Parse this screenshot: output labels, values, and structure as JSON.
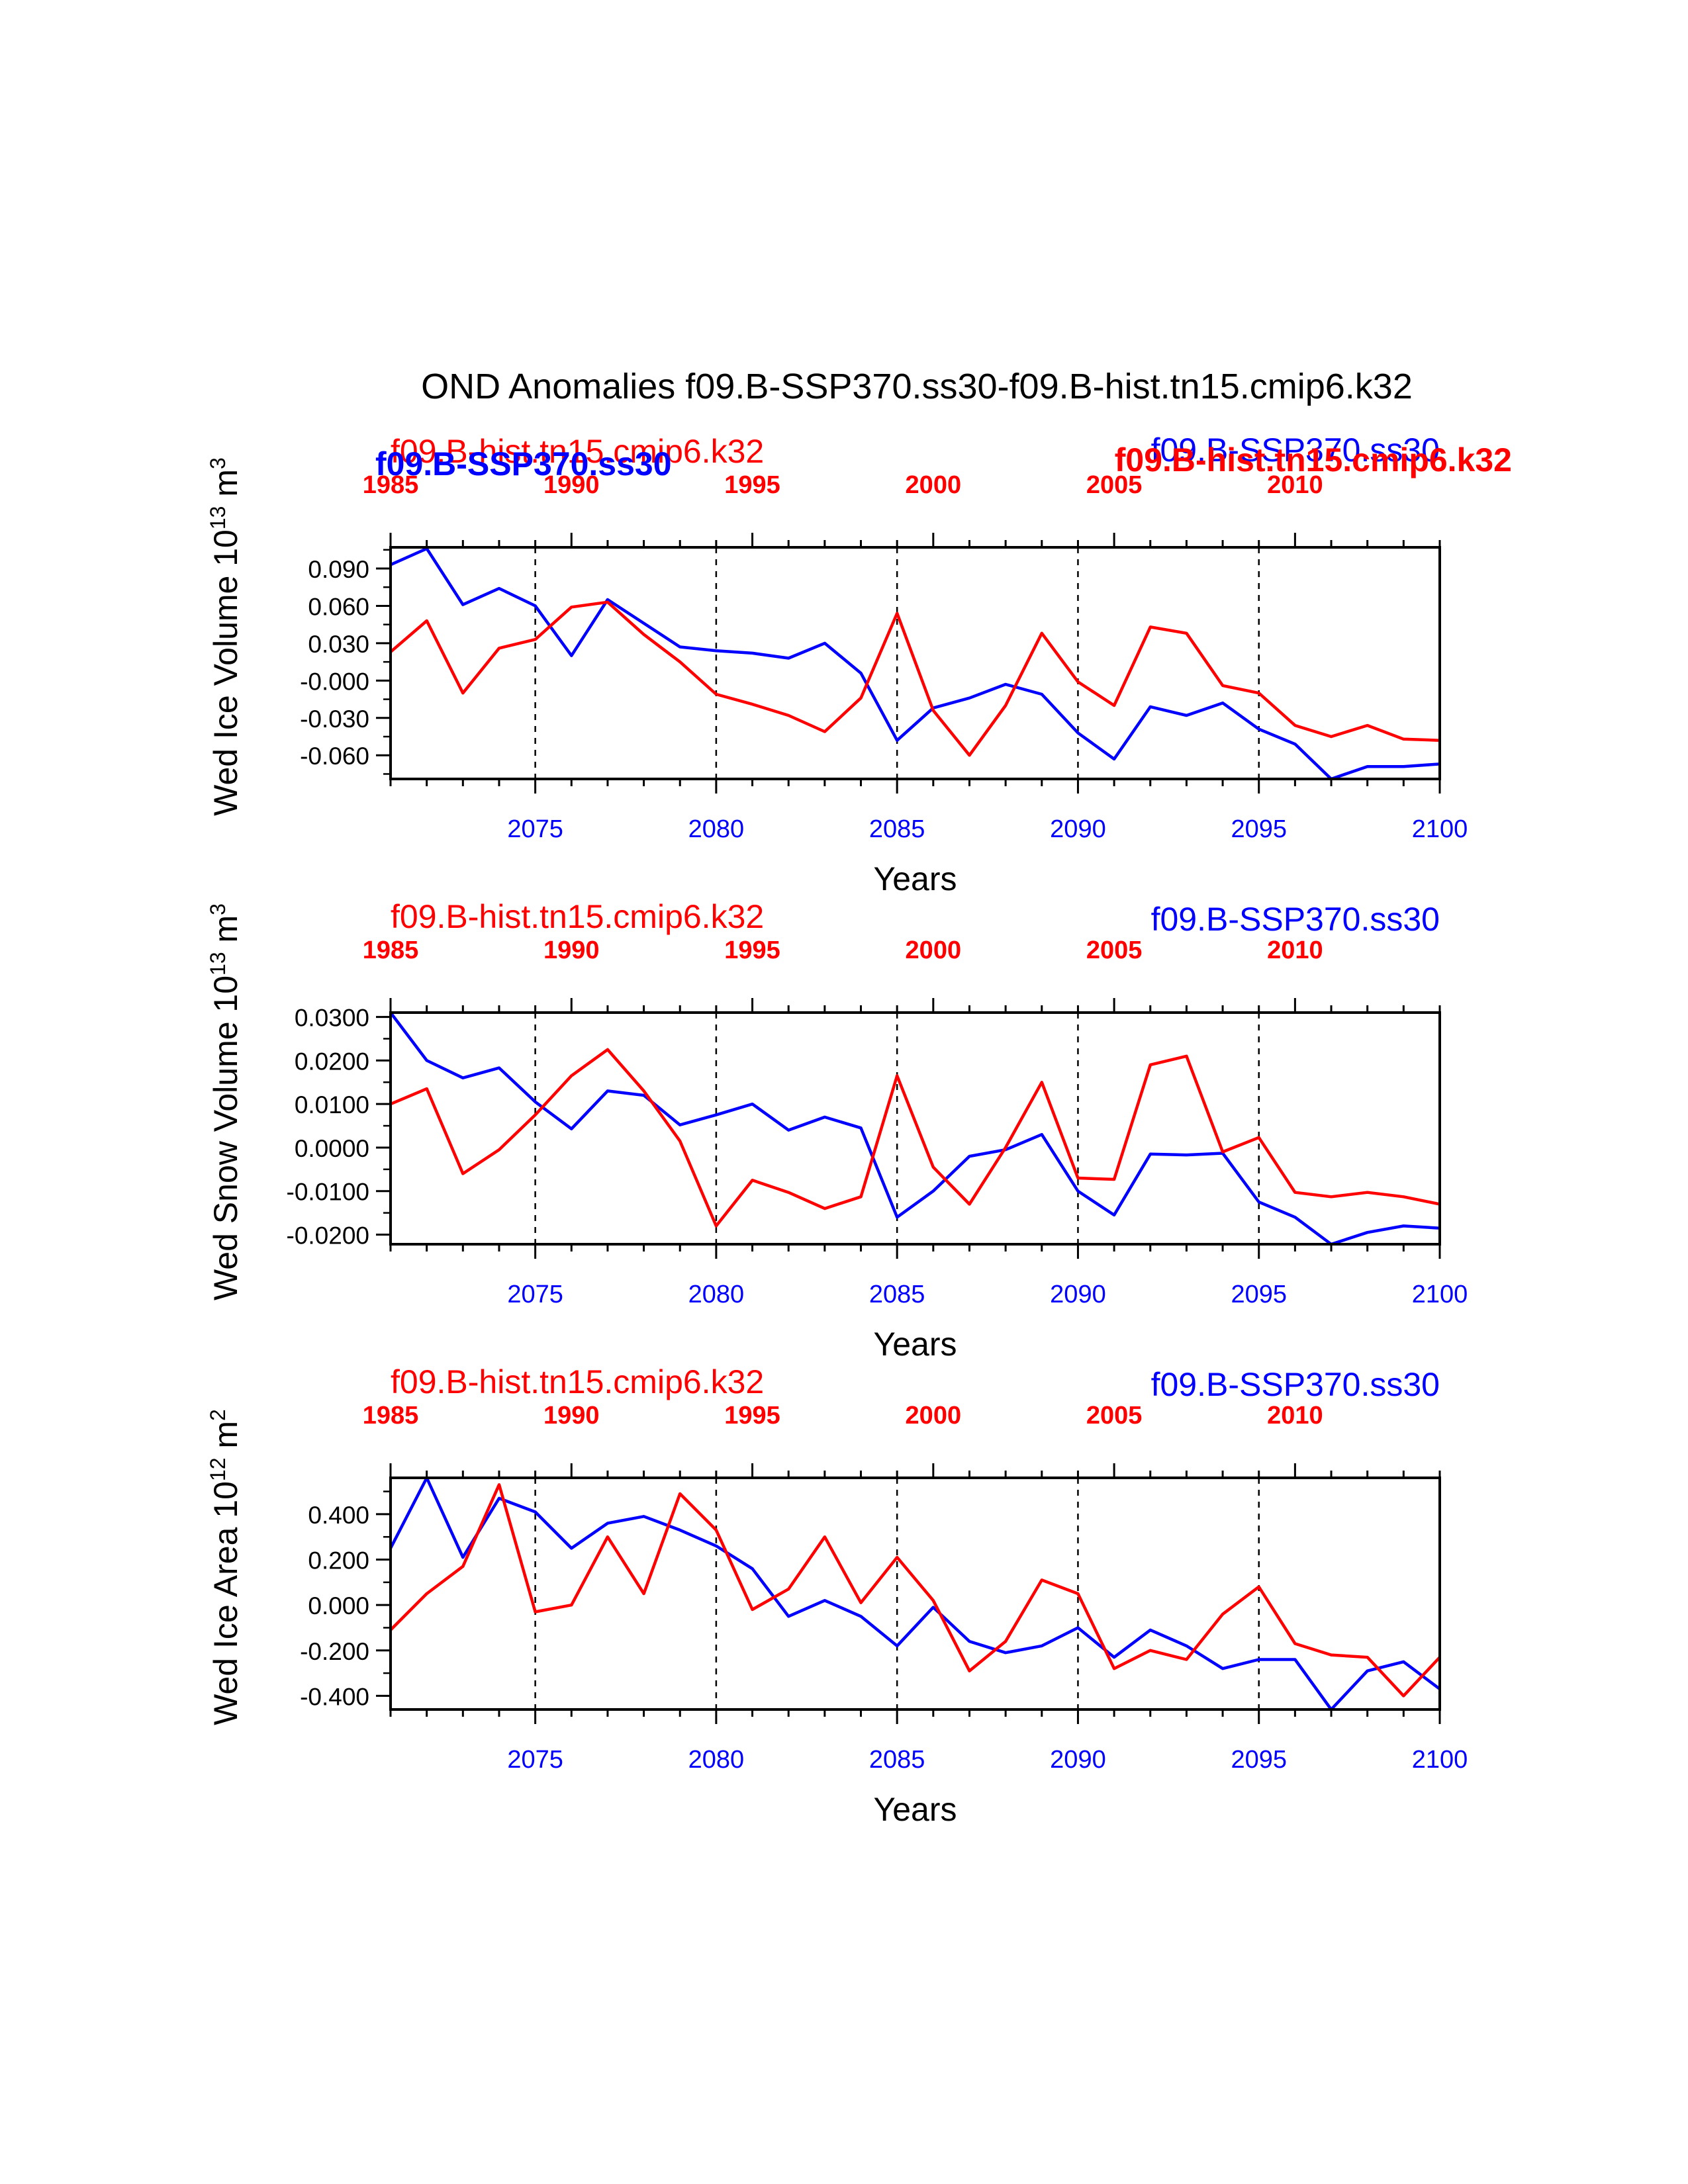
{
  "title": "OND Anomalies f09.B-SSP370.ss30-f09.B-hist.tn15.cmip6.k32",
  "colors": {
    "ssp": "#0000ff",
    "hist": "#ff0000",
    "axis": "#000000"
  },
  "overlap_labels": {
    "hist_bold_right": "f09.B-hist.tn15.cmip6.k32",
    "ssp_bold_left": "f09.B-SSP370.ss30"
  },
  "chart_data": [
    {
      "type": "line",
      "ylabel": "Wed Ice Volume 10",
      "ylabel_exp": "13",
      "ylabel_unit": " m",
      "ylabel_unit_exp": "3",
      "xlabel": "Years",
      "x_ticks_bottom": [
        "2075",
        "2080",
        "2085",
        "2090",
        "2095",
        "2100"
      ],
      "x_ticks_top": [
        "1985",
        "1990",
        "1995",
        "2000",
        "2005",
        "2010"
      ],
      "xlim": [
        2071,
        2100
      ],
      "ylim": [
        -0.079,
        0.107
      ],
      "y_ticks": [
        "0.090",
        "0.060",
        "0.030",
        "-0.000",
        "-0.030",
        "-0.060"
      ],
      "y_tick_values": [
        0.09,
        0.06,
        0.03,
        0.0,
        -0.03,
        -0.06
      ],
      "legend_left": "f09.B-hist.tn15.cmip6.k32",
      "legend_right": "f09.B-SSP370.ss30",
      "series": [
        {
          "name": "f09.B-SSP370.ss30",
          "color": "#0000ff",
          "x": [
            2071,
            2072,
            2073,
            2074,
            2075,
            2076,
            2077,
            2078,
            2079,
            2080,
            2081,
            2082,
            2083,
            2084,
            2085,
            2086,
            2087,
            2088,
            2089,
            2090,
            2091,
            2092,
            2093,
            2094,
            2095,
            2096,
            2097,
            2098,
            2099,
            2100
          ],
          "values": [
            0.093,
            0.106,
            0.061,
            0.074,
            0.06,
            0.02,
            0.065,
            0.046,
            0.027,
            0.024,
            0.022,
            0.018,
            0.03,
            0.006,
            -0.048,
            -0.022,
            -0.014,
            -0.003,
            -0.011,
            -0.042,
            -0.063,
            -0.021,
            -0.028,
            -0.018,
            -0.039,
            -0.051,
            -0.082,
            -0.069,
            -0.069,
            -0.067
          ]
        },
        {
          "name": "f09.B-hist.tn15.cmip6.k32",
          "color": "#ff0000",
          "x": [
            2071,
            2072,
            2073,
            2074,
            2075,
            2076,
            2077,
            2078,
            2079,
            2080,
            2081,
            2082,
            2083,
            2084,
            2085,
            2086,
            2087,
            2088,
            2089,
            2090,
            2091,
            2092,
            2093,
            2094,
            2095,
            2096,
            2097,
            2098,
            2099,
            2100
          ],
          "values": [
            0.023,
            0.048,
            -0.01,
            0.026,
            0.033,
            0.059,
            0.063,
            0.037,
            0.015,
            -0.011,
            -0.019,
            -0.028,
            -0.041,
            -0.014,
            0.054,
            -0.024,
            -0.06,
            -0.02,
            0.038,
            -0.001,
            -0.02,
            0.043,
            0.038,
            -0.004,
            -0.01,
            -0.036,
            -0.045,
            -0.036,
            -0.047,
            -0.048
          ]
        }
      ]
    },
    {
      "type": "line",
      "ylabel": "Wed Snow Volume 10",
      "ylabel_exp": "13",
      "ylabel_unit": " m",
      "ylabel_unit_exp": "3",
      "xlabel": "Years",
      "x_ticks_bottom": [
        "2075",
        "2080",
        "2085",
        "2090",
        "2095",
        "2100"
      ],
      "x_ticks_top": [
        "1985",
        "1990",
        "1995",
        "2000",
        "2005",
        "2010"
      ],
      "xlim": [
        2071,
        2100
      ],
      "ylim": [
        -0.0222,
        0.031
      ],
      "y_ticks": [
        "0.0300",
        "0.0200",
        "0.0100",
        "0.0000",
        "-0.0100",
        "-0.0200"
      ],
      "y_tick_values": [
        0.03,
        0.02,
        0.01,
        0.0,
        -0.01,
        -0.02
      ],
      "legend_left": "f09.B-hist.tn15.cmip6.k32",
      "legend_right": "f09.B-SSP370.ss30",
      "series": [
        {
          "name": "f09.B-SSP370.ss30",
          "color": "#0000ff",
          "x": [
            2071,
            2072,
            2073,
            2074,
            2075,
            2076,
            2077,
            2078,
            2079,
            2080,
            2081,
            2082,
            2083,
            2084,
            2085,
            2086,
            2087,
            2088,
            2089,
            2090,
            2091,
            2092,
            2093,
            2094,
            2095,
            2096,
            2097,
            2098,
            2099,
            2100
          ],
          "values": [
            0.031,
            0.02,
            0.016,
            0.0183,
            0.0105,
            0.0043,
            0.013,
            0.012,
            0.0052,
            0.0075,
            0.01,
            0.004,
            0.007,
            0.0045,
            -0.016,
            -0.01,
            -0.002,
            -0.0005,
            0.003,
            -0.01,
            -0.0155,
            -0.0015,
            -0.0017,
            -0.0013,
            -0.0125,
            -0.016,
            -0.0222,
            -0.0195,
            -0.018,
            -0.0185
          ]
        },
        {
          "name": "f09.B-hist.tn15.cmip6.k32",
          "color": "#ff0000",
          "x": [
            2071,
            2072,
            2073,
            2074,
            2075,
            2076,
            2077,
            2078,
            2079,
            2080,
            2081,
            2082,
            2083,
            2084,
            2085,
            2086,
            2087,
            2088,
            2089,
            2090,
            2091,
            2092,
            2093,
            2094,
            2095,
            2096,
            2097,
            2098,
            2099,
            2100
          ],
          "values": [
            0.01,
            0.0135,
            -0.006,
            -0.0005,
            0.0075,
            0.0165,
            0.0225,
            0.013,
            0.0015,
            -0.018,
            -0.0075,
            -0.0103,
            -0.014,
            -0.0113,
            0.0165,
            -0.0045,
            -0.013,
            0.0,
            0.015,
            -0.007,
            -0.0073,
            0.019,
            0.021,
            -0.001,
            0.0023,
            -0.0103,
            -0.0113,
            -0.0103,
            -0.0113,
            -0.013
          ]
        }
      ]
    },
    {
      "type": "line",
      "ylabel": "Wed Ice Area 10",
      "ylabel_exp": "12",
      "ylabel_unit": " m",
      "ylabel_unit_exp": "2",
      "xlabel": "Years",
      "x_ticks_bottom": [
        "2075",
        "2080",
        "2085",
        "2090",
        "2095",
        "2100"
      ],
      "x_ticks_top": [
        "1985",
        "1990",
        "1995",
        "2000",
        "2005",
        "2010"
      ],
      "xlim": [
        2071,
        2100
      ],
      "ylim": [
        -0.46,
        0.56
      ],
      "y_ticks": [
        "0.400",
        "0.200",
        "0.000",
        "-0.200",
        "-0.400"
      ],
      "y_tick_values": [
        0.4,
        0.2,
        0.0,
        -0.2,
        -0.4
      ],
      "legend_left": "f09.B-hist.tn15.cmip6.k32",
      "legend_right": "f09.B-SSP370.ss30",
      "series": [
        {
          "name": "f09.B-SSP370.ss30",
          "color": "#0000ff",
          "x": [
            2071,
            2072,
            2073,
            2074,
            2075,
            2076,
            2077,
            2078,
            2079,
            2080,
            2081,
            2082,
            2083,
            2084,
            2085,
            2086,
            2087,
            2088,
            2089,
            2090,
            2091,
            2092,
            2093,
            2094,
            2095,
            2096,
            2097,
            2098,
            2099,
            2100
          ],
          "values": [
            0.25,
            0.56,
            0.21,
            0.47,
            0.41,
            0.25,
            0.36,
            0.39,
            0.33,
            0.26,
            0.16,
            -0.05,
            0.02,
            -0.05,
            -0.18,
            -0.01,
            -0.16,
            -0.21,
            -0.18,
            -0.1,
            -0.23,
            -0.11,
            -0.18,
            -0.28,
            -0.24,
            -0.24,
            -0.48,
            -0.29,
            -0.25,
            -0.37
          ]
        },
        {
          "name": "f09.B-hist.tn15.cmip6.k32",
          "color": "#ff0000",
          "x": [
            2071,
            2072,
            2073,
            2074,
            2075,
            2076,
            2077,
            2078,
            2079,
            2080,
            2081,
            2082,
            2083,
            2084,
            2085,
            2086,
            2087,
            2088,
            2089,
            2090,
            2091,
            2092,
            2093,
            2094,
            2095,
            2096,
            2097,
            2098,
            2099,
            2100
          ],
          "values": [
            -0.11,
            0.05,
            0.17,
            0.53,
            -0.03,
            0.0,
            0.3,
            0.05,
            0.49,
            0.33,
            -0.02,
            0.07,
            0.3,
            0.01,
            0.21,
            0.02,
            -0.29,
            -0.16,
            0.11,
            0.05,
            -0.28,
            -0.2,
            -0.24,
            -0.04,
            0.08,
            -0.17,
            -0.22,
            -0.23,
            -0.4,
            -0.23
          ]
        }
      ]
    }
  ]
}
